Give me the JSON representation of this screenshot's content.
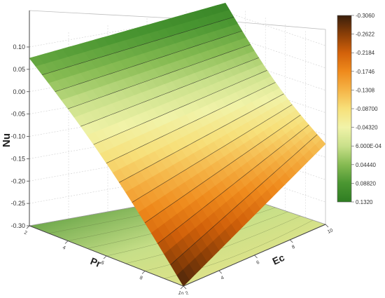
{
  "chart_data": {
    "type": "surface3d",
    "title": "",
    "zlabel": "Nu",
    "xlabel": "Pr",
    "ylabel": "Ec",
    "zlim": [
      -0.3,
      0.1
    ],
    "z_ticks": [
      "0.10",
      "0.05",
      "0.00",
      "-0.05",
      "-0.10",
      "-0.15",
      "-0.20",
      "-0.25",
      "-0.30"
    ],
    "pr_ticks": [
      "2",
      "4",
      "6",
      "8",
      "10"
    ],
    "ec_ticks": [
      "2",
      "4",
      "6",
      "8",
      "10"
    ],
    "surface_corners": {
      "pr2_ec2": 0.075,
      "pr2_ec10": 0.12,
      "pr10_ec2": -0.3,
      "pr10_ec10": -0.12
    },
    "colorbar": {
      "levels": [
        "-0.3060",
        "-0.2622",
        "-0.2184",
        "-0.1746",
        "-0.1308",
        "-0.08700",
        "-0.04320",
        "6.000E-04",
        "0.04440",
        "0.08820",
        "0.1320"
      ],
      "colors": [
        "#3a1f0c",
        "#8a3e07",
        "#d2610a",
        "#ef8a1c",
        "#f5b447",
        "#f7e07a",
        "#f1f3a8",
        "#c9e08a",
        "#86bb52",
        "#4a9631",
        "#2f7d22"
      ]
    }
  }
}
